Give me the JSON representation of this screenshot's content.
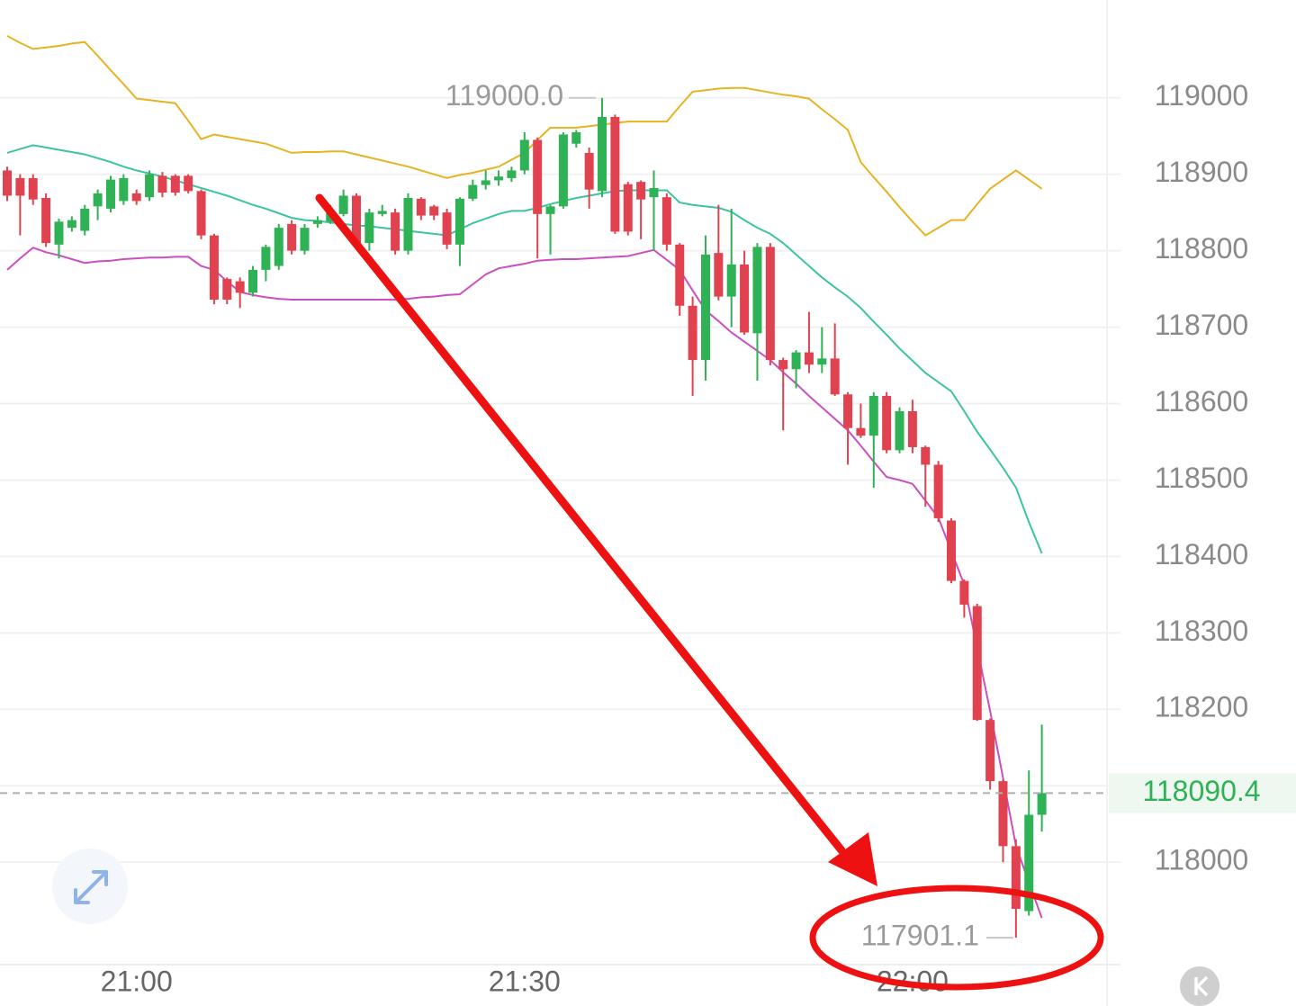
{
  "chart_data": {
    "type": "candlestick",
    "categories": [
      null,
      null,
      null,
      null,
      null,
      null,
      null,
      null,
      null,
      null,
      "21:00",
      null,
      null,
      null,
      null,
      null,
      null,
      null,
      null,
      null,
      null,
      null,
      null,
      null,
      null,
      null,
      null,
      null,
      null,
      null,
      null,
      null,
      null,
      null,
      null,
      null,
      null,
      null,
      null,
      null,
      "21:30",
      null,
      null,
      null,
      null,
      null,
      null,
      null,
      null,
      null,
      null,
      null,
      null,
      null,
      null,
      null,
      null,
      null,
      null,
      null,
      null,
      null,
      null,
      null,
      null,
      null,
      null,
      null,
      null,
      null,
      "22:00",
      null,
      null,
      null,
      null,
      null,
      null,
      null,
      null,
      null,
      null
    ],
    "open": [
      118905,
      118895,
      118895,
      118869,
      118808,
      118830,
      118826,
      118858,
      118855,
      118865,
      118875,
      118870,
      118898,
      118898,
      118898,
      118878,
      118820,
      118763,
      118760,
      118745,
      118775,
      118780,
      118835,
      118800,
      118835,
      118838,
      118848,
      118872,
      118810,
      118848,
      118850,
      118800,
      118868,
      118858,
      118850,
      118808,
      118868,
      118886,
      118892,
      118895,
      118905,
      118945,
      118848,
      118858,
      118940,
      118928,
      118878,
      118975,
      118887,
      118890,
      118870,
      118870,
      118808,
      118728,
      118657,
      118797,
      118740,
      118782,
      118692,
      118805,
      118657,
      118645,
      118667,
      118651,
      118659,
      118612,
      118568,
      118558,
      118610,
      118539,
      118590,
      118543,
      118520,
      118447,
      118368,
      118335,
      118186,
      118106,
      118021,
      117936,
      118062
    ],
    "high": [
      118910,
      118900,
      118900,
      118875,
      118842,
      118845,
      118860,
      118880,
      118898,
      118900,
      118880,
      118905,
      118903,
      118900,
      118900,
      118880,
      118822,
      118765,
      118765,
      118780,
      118808,
      118835,
      118840,
      118835,
      118845,
      118860,
      118880,
      118875,
      118855,
      118860,
      118855,
      118875,
      118870,
      118860,
      118855,
      118870,
      118893,
      118905,
      118905,
      118910,
      118955,
      118948,
      118860,
      118955,
      118958,
      118935,
      119000,
      118978,
      118890,
      118892,
      118905,
      118875,
      118810,
      118740,
      118820,
      118860,
      118855,
      118800,
      118810,
      118810,
      118660,
      118670,
      118720,
      118700,
      118705,
      118615,
      118600,
      118615,
      118615,
      118595,
      118605,
      118545,
      118525,
      118450,
      118370,
      118338,
      118188,
      118108,
      118030,
      118120,
      118180
    ],
    "low": [
      118865,
      118820,
      118860,
      118805,
      118790,
      118825,
      118820,
      118840,
      118850,
      118860,
      118860,
      118865,
      118870,
      118872,
      118875,
      118815,
      118730,
      118730,
      118725,
      118740,
      118760,
      118775,
      118795,
      118795,
      118830,
      118835,
      118845,
      118805,
      118800,
      118845,
      118795,
      118795,
      118840,
      118840,
      118802,
      118780,
      118865,
      118880,
      118885,
      118890,
      118900,
      118790,
      118795,
      118855,
      118935,
      118855,
      118870,
      118822,
      118820,
      118815,
      118800,
      118800,
      118715,
      118610,
      118630,
      118735,
      118700,
      118690,
      118630,
      118650,
      118565,
      118620,
      118640,
      118640,
      118610,
      118520,
      118555,
      118490,
      118535,
      118535,
      118535,
      118465,
      118445,
      118365,
      118320,
      118185,
      118095,
      118000,
      117901.1,
      117930,
      118040
    ],
    "close": [
      118872,
      118872,
      118867,
      118810,
      118838,
      118840,
      118855,
      118875,
      118893,
      118895,
      118865,
      118900,
      118876,
      118876,
      118878,
      118820,
      118736,
      118736,
      118745,
      118775,
      118805,
      118830,
      118800,
      118830,
      118840,
      118850,
      118872,
      118810,
      118850,
      118852,
      118800,
      118869,
      118846,
      118846,
      118808,
      118868,
      118886,
      118892,
      118897,
      118905,
      118945,
      118848,
      118858,
      118952,
      118955,
      118880,
      118975,
      118825,
      118825,
      118867,
      118882,
      118808,
      118728,
      118657,
      118795,
      118740,
      118782,
      118693,
      118805,
      118657,
      118645,
      118667,
      118651,
      118659,
      118612,
      118568,
      118558,
      118610,
      118539,
      118590,
      118543,
      118520,
      118450,
      118368,
      118337,
      118186,
      118106,
      118021,
      117939,
      118062,
      118090.4
    ],
    "up_color": "#2fb155",
    "down_color": "#e0434f",
    "bands": [
      {
        "color": "#e6b422",
        "values": [
          119081,
          119072,
          119064,
          119066,
          119068,
          119071,
          119073,
          119055,
          119036,
          119018,
          118999,
          118997,
          118995,
          118993,
          118970,
          118946,
          118952,
          118949,
          118946,
          118943,
          118940,
          118934,
          118928,
          118929,
          118929,
          118930,
          118930,
          118926,
          118922,
          118918,
          118914,
          118910,
          118905,
          118900,
          118895,
          118899,
          118902,
          118906,
          118910,
          118919,
          118928,
          118945,
          118961,
          118961,
          118961,
          118963,
          118965,
          118967,
          118969,
          118969,
          118969,
          118969,
          118989,
          119008,
          119010,
          119012,
          119013,
          119013,
          119010,
          119007,
          119004,
          119002,
          118999,
          118985,
          118972,
          118958,
          118916,
          118896,
          118877,
          118857,
          118838,
          118820,
          118830,
          118840,
          118840,
          118861,
          118881,
          118893,
          118905,
          118893,
          118881
        ]
      },
      {
        "color": "#3cc4a0",
        "values": [
          118928,
          118933,
          118938,
          118935,
          118932,
          118929,
          118926,
          118921,
          118916,
          118910,
          118905,
          118901,
          118897,
          118892,
          118887,
          118882,
          118877,
          118872,
          118866,
          118860,
          118855,
          118849,
          118843,
          118840,
          118839,
          118837,
          118835,
          118833,
          118832,
          118830,
          118828,
          118826,
          118824,
          118822,
          118820,
          118828,
          118836,
          118842,
          118848,
          118852,
          118852,
          118856,
          118861,
          118865,
          118869,
          118872,
          118875,
          118878,
          118879,
          118879,
          118879,
          118879,
          118863,
          118860,
          118858,
          118856,
          118851,
          118840,
          118830,
          118822,
          118810,
          118795,
          118780,
          118765,
          118752,
          118740,
          118725,
          118707,
          118690,
          118672,
          118656,
          118640,
          118628,
          118616,
          118590,
          118563,
          118540,
          118516,
          118490,
          118445,
          118404
        ]
      },
      {
        "color": "#cc4fc0",
        "values": [
          118775,
          118790,
          118804,
          118798,
          118794,
          118789,
          118784,
          118786,
          118787,
          118789,
          118790,
          118791,
          118791,
          118792,
          118792,
          118780,
          118775,
          118760,
          118746,
          118742,
          118739,
          118737,
          118736,
          118736,
          118736,
          118736,
          118736,
          118736,
          118736,
          118736,
          118736,
          118737,
          118739,
          118740,
          118742,
          118743,
          118756,
          118769,
          118777,
          118780,
          118783,
          118787,
          118788,
          118789,
          118789,
          118790,
          118791,
          118792,
          118793,
          118797,
          118801,
          118788,
          118775,
          118748,
          118722,
          118708,
          118693,
          118681,
          118669,
          118657,
          118641,
          118626,
          118610,
          118595,
          118580,
          118565,
          118545,
          118524,
          118504,
          118500,
          118495,
          118473,
          118451,
          118407,
          118363,
          118280,
          118198,
          118110,
          118021,
          117974,
          117927
        ]
      }
    ],
    "ylim": [
      117866,
      119128
    ],
    "yticks": [
      118000,
      118100,
      118200,
      118300,
      118400,
      118500,
      118600,
      118700,
      118800,
      118900,
      119000
    ],
    "ytick_labels_shown": [
      118000,
      118200,
      118300,
      118400,
      118500,
      118600,
      118700,
      118800,
      118900,
      119000
    ],
    "grid": true,
    "current_price": 118090.4,
    "max_label": {
      "value": 119000,
      "label": "119000.0"
    },
    "min_label": 117901.1
  }
}
